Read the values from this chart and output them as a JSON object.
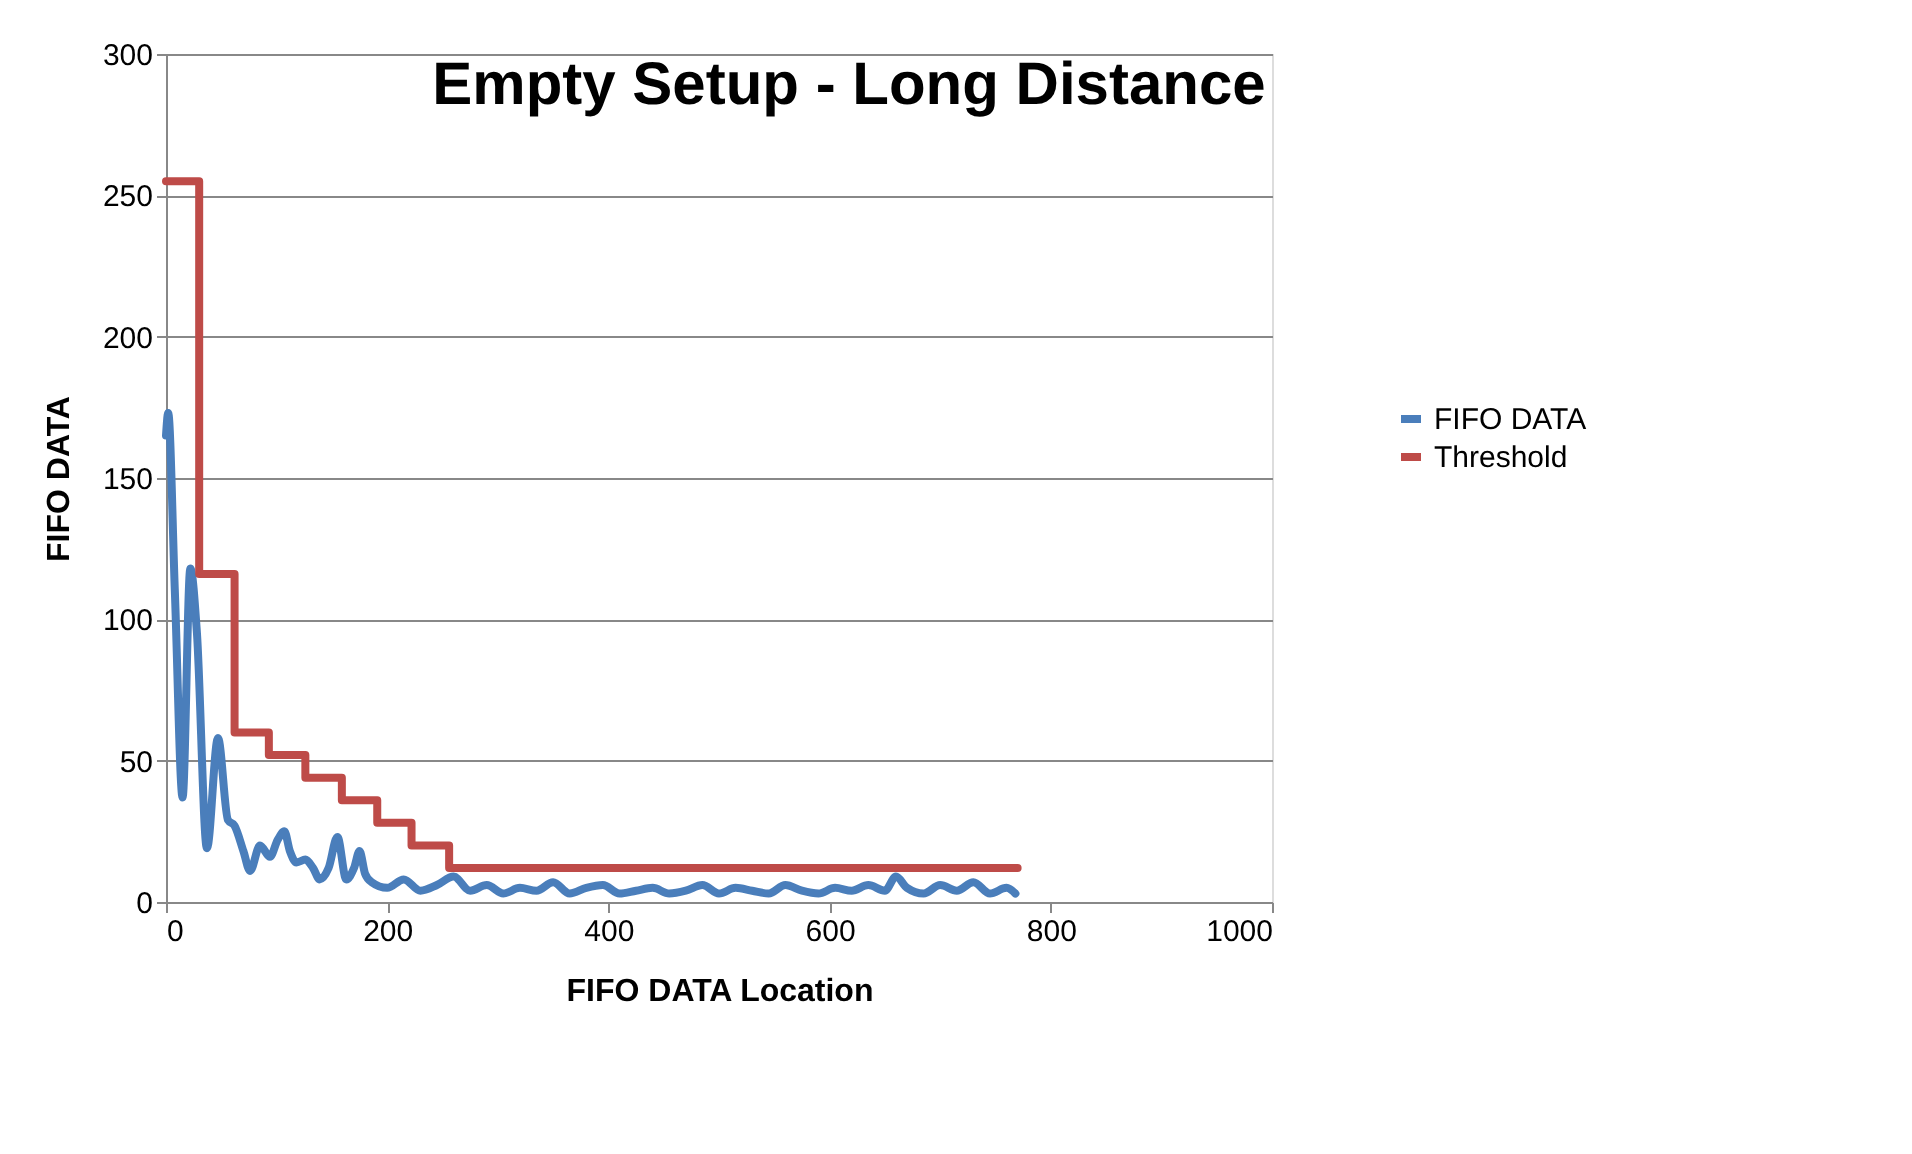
{
  "chart_data": {
    "type": "line",
    "title": "Empty Setup - Long Distance",
    "xlabel": "FIFO DATA Location",
    "ylabel": "FIFO DATA",
    "xlim": [
      0,
      1000
    ],
    "xticks": [
      0,
      200,
      400,
      600,
      800,
      1000
    ],
    "ylim": [
      0,
      300
    ],
    "yticks": [
      0,
      50,
      100,
      150,
      200,
      250,
      300
    ],
    "grid": "y",
    "legend": "right",
    "series": [
      {
        "name": "FIFO DATA",
        "color": "#4a7ebb",
        "x": [
          0,
          2,
          8,
          15,
          22,
          28,
          37,
          47,
          56,
          62,
          70,
          76,
          85,
          94,
          101,
          107,
          112,
          118,
          126,
          133,
          139,
          147,
          155,
          163,
          170,
          175,
          180,
          186,
          200,
          215,
          230,
          245,
          260,
          275,
          290,
          305,
          320,
          335,
          350,
          365,
          380,
          395,
          410,
          425,
          440,
          455,
          470,
          485,
          500,
          515,
          530,
          545,
          560,
          575,
          590,
          605,
          620,
          635,
          650,
          660,
          670,
          685,
          700,
          715,
          730,
          745,
          760,
          768
        ],
        "values": [
          165,
          173,
          110,
          37,
          118,
          95,
          19,
          58,
          29,
          27,
          18,
          11,
          20,
          16,
          22,
          25,
          18,
          14,
          15,
          12,
          8,
          12,
          23,
          8,
          12,
          18,
          10,
          7,
          5,
          8,
          4,
          6,
          9,
          4,
          6,
          3,
          5,
          4,
          7,
          3,
          5,
          6,
          3,
          4,
          5,
          3,
          4,
          6,
          3,
          5,
          4,
          3,
          6,
          4,
          3,
          5,
          4,
          6,
          4,
          9,
          5,
          3,
          6,
          4,
          7,
          3,
          5,
          3
        ]
      },
      {
        "name": "Threshold",
        "color": "#be4b48",
        "type": "step",
        "x": [
          0,
          30,
          62,
          93,
          126,
          159,
          191,
          222,
          256,
          770
        ],
        "values": [
          255,
          116,
          60,
          52,
          44,
          36,
          28,
          20,
          12,
          12
        ]
      }
    ]
  }
}
